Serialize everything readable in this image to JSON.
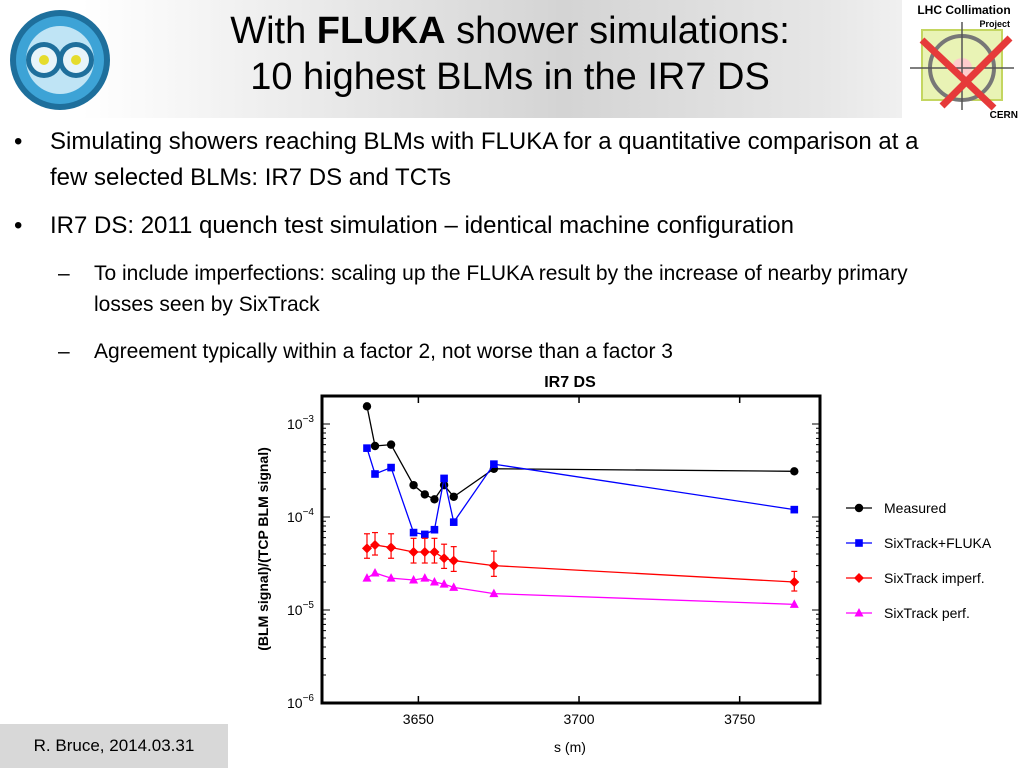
{
  "slide": {
    "title_prefix": "With ",
    "title_bold": "FLUKA",
    "title_suffix": " shower simulations:",
    "title_line2": "10 highest BLMs in the IR7 DS",
    "logo_right": {
      "line1": "LHC Collimation",
      "line2": "Project",
      "line3": "CERN"
    },
    "bullets": [
      {
        "marker": "•",
        "text": "Simulating showers reaching BLMs with FLUKA for a quantitative comparison at a few selected BLMs: IR7 DS and TCTs"
      },
      {
        "marker": "•",
        "text": "IR7 DS: 2011 quench test simulation – identical machine configuration",
        "sub": [
          {
            "marker": "–",
            "text": "To include imperfections: scaling up the FLUKA result by the increase of nearby primary losses seen by SixTrack"
          },
          {
            "marker": "–",
            "text": "Agreement typically within a factor 2, not worse than a factor 3"
          }
        ]
      }
    ],
    "footer": "R. Bruce, 2014.03.31"
  },
  "chart_data": {
    "type": "line",
    "title": "IR7 DS",
    "xlabel": "s (m)",
    "ylabel": "(BLM signal)/(TCP BLM signal)",
    "xlim": [
      3620,
      3775
    ],
    "ylim": [
      1e-06,
      0.002
    ],
    "yscale": "log",
    "xticks": [
      3650,
      3700,
      3750
    ],
    "xtick_labels": [
      "3650",
      "3700",
      "3750"
    ],
    "yticks": [
      1e-06,
      1e-05,
      0.0001,
      0.001
    ],
    "ytick_base": "10",
    "ytick_exponents": [
      "−6",
      "−5",
      "−4",
      "−3"
    ],
    "grid": false,
    "legend_position": "right",
    "series": [
      {
        "name": "Measured",
        "color": "#000000",
        "marker": "circle",
        "x": [
          3634,
          3636.5,
          3641.5,
          3648.5,
          3652,
          3655,
          3658,
          3661,
          3673.5,
          3767
        ],
        "y": [
          0.00155,
          0.00058,
          0.0006,
          0.00022,
          0.000175,
          0.000155,
          0.00022,
          0.000165,
          0.00033,
          0.00031
        ]
      },
      {
        "name": "SixTrack+FLUKA",
        "color": "#0000ff",
        "marker": "square",
        "x": [
          3634,
          3636.5,
          3641.5,
          3648.5,
          3652,
          3655,
          3658,
          3661,
          3673.5,
          3767
        ],
        "y": [
          0.00055,
          0.00029,
          0.00034,
          6.8e-05,
          6.5e-05,
          7.3e-05,
          0.00026,
          8.8e-05,
          0.00037,
          0.00012
        ]
      },
      {
        "name": "SixTrack imperf.",
        "color": "#ff0000",
        "marker": "diamond",
        "x": [
          3634,
          3636.5,
          3641.5,
          3648.5,
          3652,
          3655,
          3658,
          3661,
          3673.5,
          3767
        ],
        "y": [
          4.6e-05,
          5e-05,
          4.7e-05,
          4.2e-05,
          4.2e-05,
          4.2e-05,
          3.6e-05,
          3.4e-05,
          3e-05,
          2e-05
        ],
        "err_low": [
          3.6e-05,
          3.9e-05,
          3.6e-05,
          3.2e-05,
          3.2e-05,
          3.2e-05,
          2.8e-05,
          2.6e-05,
          2.3e-05,
          1.6e-05
        ],
        "err_high": [
          6.6e-05,
          6.8e-05,
          6.6e-05,
          5.9e-05,
          5.9e-05,
          5.9e-05,
          5.1e-05,
          4.8e-05,
          4.3e-05,
          2.6e-05
        ]
      },
      {
        "name": "SixTrack perf.",
        "color": "#ff00ff",
        "marker": "triangle",
        "x": [
          3634,
          3636.5,
          3641.5,
          3648.5,
          3652,
          3655,
          3658,
          3661,
          3673.5,
          3767
        ],
        "y": [
          2.2e-05,
          2.5e-05,
          2.2e-05,
          2.1e-05,
          2.2e-05,
          2e-05,
          1.9e-05,
          1.75e-05,
          1.5e-05,
          1.15e-05
        ]
      }
    ]
  }
}
